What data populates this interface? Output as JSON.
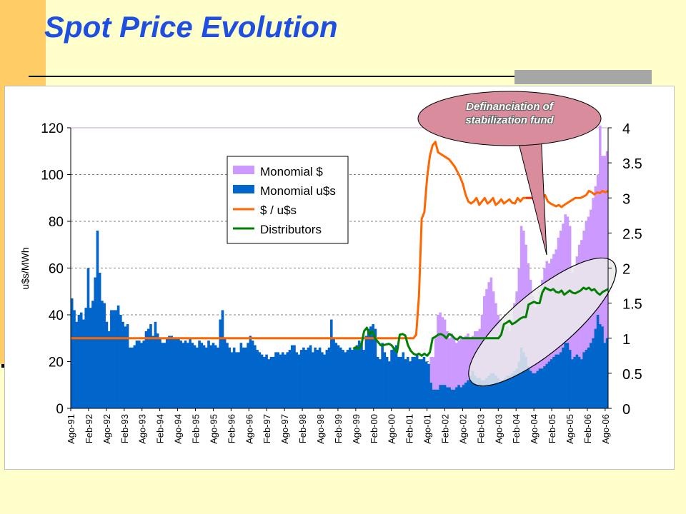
{
  "slide": {
    "title": "Spot Price Evolution",
    "callout": "Definanciation of stabilization fund"
  },
  "colors": {
    "monomial_pesos": "#CC99FF",
    "monomial_usd": "#0066CC",
    "exchange_rate": "#FF6600",
    "distributors": "#008000",
    "title": "#1F4FE0",
    "callout_fill": "#D98C9C"
  },
  "chart_data": {
    "type": "bar",
    "title": "",
    "ylabel": "u$s/MWh",
    "xlabel": "",
    "ylim": [
      0,
      120
    ],
    "y2lim": [
      0,
      4
    ],
    "yticks": [
      0,
      20,
      40,
      60,
      80,
      100,
      120
    ],
    "y2ticks": [
      "0",
      "0.5",
      "1",
      "1.5",
      "2",
      "2.5",
      "3",
      "3.5",
      "4"
    ],
    "grid": true,
    "legend_position": "top-center",
    "x_start": "Ago-91",
    "x_end": "Ago-06",
    "x_tick_labels": [
      "Ago-91",
      "Feb-92",
      "Ago-92",
      "Feb-93",
      "Ago-93",
      "Feb-94",
      "Ago-94",
      "Feb-95",
      "Ago-95",
      "Feb-96",
      "Ago-96",
      "Feb-97",
      "Ago-97",
      "Feb-98",
      "Ago-98",
      "Feb-99",
      "Ago-99",
      "Feb-00",
      "Ago-00",
      "Feb-01",
      "Ago-01",
      "Feb-02",
      "Ago-02",
      "Feb-03",
      "Ago-03",
      "Feb-04",
      "Ago-04",
      "Feb-05",
      "Ago-05",
      "Feb-06",
      "Ago-06"
    ],
    "series": [
      {
        "name": "Monomial $",
        "kind": "bar",
        "axis": "left",
        "values": [
          47,
          42,
          37,
          40,
          41,
          38,
          43,
          60,
          43,
          46,
          56,
          76,
          58,
          46,
          45,
          37,
          33,
          42,
          42,
          42,
          44,
          40,
          37,
          35,
          36,
          26,
          26,
          27,
          29,
          29,
          28,
          29,
          33,
          34,
          36,
          31,
          37,
          32,
          30,
          28,
          28,
          30,
          31,
          31,
          30,
          30,
          30,
          29,
          28,
          29,
          28,
          30,
          28,
          27,
          26,
          29,
          28,
          27,
          26,
          29,
          27,
          28,
          27,
          26,
          38,
          42,
          30,
          28,
          26,
          24,
          26,
          24,
          24,
          28,
          26,
          26,
          28,
          31,
          29,
          27,
          25,
          24,
          23,
          22,
          23,
          21,
          22,
          22,
          24,
          24,
          23,
          24,
          23,
          24,
          25,
          27,
          27,
          24,
          23,
          25,
          26,
          25,
          26,
          27,
          24,
          26,
          25,
          26,
          24,
          23,
          25,
          26,
          38,
          30,
          28,
          27,
          26,
          25,
          24,
          25,
          26,
          25,
          26,
          27,
          29,
          28,
          25,
          31,
          34,
          35,
          36,
          34,
          22,
          21,
          28,
          24,
          22,
          20,
          25,
          26,
          27,
          22,
          22,
          24,
          21,
          22,
          20,
          22,
          22,
          23,
          21,
          21,
          22,
          20,
          19,
          22,
          22,
          30,
          40,
          41,
          39,
          38,
          33,
          30,
          32,
          30,
          28,
          29,
          31,
          30,
          31,
          32,
          30,
          31,
          33,
          33,
          34,
          40,
          48,
          51,
          54,
          56,
          50,
          45,
          40,
          38,
          36,
          34,
          35,
          33,
          38,
          45,
          50,
          60,
          78,
          76,
          70,
          62,
          55,
          48,
          43,
          45,
          50,
          55,
          60,
          63,
          62,
          64,
          66,
          68,
          73,
          76,
          79,
          83,
          82,
          78,
          58,
          60,
          65,
          70,
          72,
          76,
          80,
          82,
          85,
          90,
          95,
          100,
          121,
          108,
          108,
          110
        ]
      },
      {
        "name": "Monomial u$s",
        "kind": "bar",
        "axis": "left",
        "values": [
          47,
          42,
          37,
          40,
          41,
          38,
          43,
          60,
          43,
          46,
          56,
          76,
          58,
          46,
          45,
          37,
          33,
          42,
          42,
          42,
          44,
          40,
          37,
          35,
          36,
          26,
          26,
          27,
          29,
          29,
          28,
          29,
          33,
          34,
          36,
          31,
          37,
          32,
          30,
          28,
          28,
          30,
          31,
          31,
          30,
          30,
          30,
          29,
          28,
          29,
          28,
          30,
          28,
          27,
          26,
          29,
          28,
          27,
          26,
          29,
          27,
          28,
          27,
          26,
          38,
          42,
          30,
          28,
          26,
          24,
          26,
          24,
          24,
          28,
          26,
          26,
          28,
          31,
          29,
          27,
          25,
          24,
          23,
          22,
          23,
          21,
          22,
          22,
          24,
          24,
          23,
          24,
          23,
          24,
          25,
          27,
          27,
          24,
          23,
          25,
          26,
          25,
          26,
          27,
          24,
          26,
          25,
          26,
          24,
          23,
          25,
          26,
          38,
          30,
          28,
          27,
          26,
          25,
          24,
          25,
          26,
          25,
          26,
          27,
          29,
          28,
          25,
          31,
          34,
          35,
          36,
          34,
          22,
          21,
          28,
          24,
          22,
          20,
          25,
          26,
          27,
          22,
          22,
          24,
          21,
          22,
          20,
          22,
          22,
          23,
          21,
          21,
          22,
          20,
          19,
          11,
          8,
          8,
          8,
          10,
          10,
          10,
          9,
          9,
          8,
          8,
          9,
          10,
          9,
          10,
          11,
          12,
          14,
          16,
          14,
          13,
          13,
          12,
          12,
          13,
          14,
          15,
          15,
          14,
          13,
          12,
          12,
          13,
          14,
          14,
          15,
          16,
          17,
          20,
          26,
          24,
          22,
          18,
          16,
          15,
          15,
          16,
          17,
          17,
          18,
          19,
          20,
          21,
          22,
          23,
          23,
          24,
          26,
          28,
          28,
          25,
          21,
          22,
          23,
          22,
          21,
          24,
          25,
          26,
          28,
          30,
          34,
          40,
          36,
          35,
          28,
          30
        ]
      },
      {
        "name": "$ / u$s",
        "kind": "line",
        "axis": "right",
        "points": [
          [
            0,
            1
          ],
          [
            125,
            1
          ],
          [
            126,
            1.05
          ],
          [
            127,
            1.6
          ],
          [
            128,
            2.7
          ],
          [
            129,
            2.8
          ],
          [
            130,
            3.3
          ],
          [
            131,
            3.6
          ],
          [
            132,
            3.75
          ],
          [
            133,
            3.8
          ],
          [
            134,
            3.65
          ],
          [
            136,
            3.6
          ],
          [
            138,
            3.55
          ],
          [
            140,
            3.45
          ],
          [
            142,
            3.3
          ],
          [
            143,
            3.2
          ],
          [
            144,
            3.05
          ],
          [
            145,
            2.95
          ],
          [
            146,
            2.92
          ],
          [
            147,
            2.95
          ],
          [
            148,
            3
          ],
          [
            149,
            2.9
          ],
          [
            150,
            2.95
          ],
          [
            151,
            3.0
          ],
          [
            152,
            2.92
          ],
          [
            153,
            2.95
          ],
          [
            154,
            3.0
          ],
          [
            155,
            2.9
          ],
          [
            156,
            2.93
          ],
          [
            157,
            2.98
          ],
          [
            158,
            2.92
          ],
          [
            159,
            2.95
          ],
          [
            160,
            2.98
          ],
          [
            161,
            2.93
          ],
          [
            162,
            2.92
          ],
          [
            163,
            3.0
          ],
          [
            164,
            2.95
          ],
          [
            165,
            3.0
          ],
          [
            166,
            3.0
          ],
          [
            170,
            3.0
          ],
          [
            172,
            3.0
          ],
          [
            173,
            3.04
          ],
          [
            174,
            2.95
          ],
          [
            175,
            2.92
          ],
          [
            176,
            2.9
          ],
          [
            177,
            2.88
          ],
          [
            178,
            2.9
          ],
          [
            179,
            2.87
          ],
          [
            180,
            2.9
          ],
          [
            182,
            2.95
          ],
          [
            184,
            3.0
          ],
          [
            186,
            3.0
          ],
          [
            188,
            3.04
          ],
          [
            189,
            3.1
          ],
          [
            190,
            3.08
          ],
          [
            191,
            3.05
          ],
          [
            192,
            3.08
          ],
          [
            193,
            3.07
          ],
          [
            194,
            3.1
          ],
          [
            195,
            3.08
          ],
          [
            196,
            3.1
          ]
        ]
      },
      {
        "name": "Distributors",
        "kind": "line",
        "axis": "right",
        "points": [
          [
            103,
            0.85
          ],
          [
            104,
            0.87
          ],
          [
            105,
            0.85
          ],
          [
            106,
            0.9
          ],
          [
            107,
            1.1
          ],
          [
            108,
            1.15
          ],
          [
            109,
            1.05
          ],
          [
            110,
            1.1
          ],
          [
            111,
            1.0
          ],
          [
            112,
            0.95
          ],
          [
            113,
            0.9
          ],
          [
            114,
            0.9
          ],
          [
            116,
            0.92
          ],
          [
            117,
            0.9
          ],
          [
            118,
            0.85
          ],
          [
            119,
            0.8
          ],
          [
            120,
            1.05
          ],
          [
            121,
            1.06
          ],
          [
            122,
            1.04
          ],
          [
            123,
            0.9
          ],
          [
            124,
            0.82
          ],
          [
            125,
            0.78
          ],
          [
            126,
            0.76
          ],
          [
            127,
            0.78
          ],
          [
            128,
            0.75
          ],
          [
            129,
            0.78
          ],
          [
            130,
            0.75
          ],
          [
            131,
            0.8
          ],
          [
            132,
            1.0
          ],
          [
            133,
            1.02
          ],
          [
            134,
            1.05
          ],
          [
            135,
            1.06
          ],
          [
            136,
            1.04
          ],
          [
            137,
            1.0
          ],
          [
            138,
            1.06
          ],
          [
            139,
            1.04
          ],
          [
            140,
            1.0
          ],
          [
            141,
            0.98
          ],
          [
            142,
            1.02
          ],
          [
            143,
            1.0
          ],
          [
            144,
            1.0
          ],
          [
            146,
            1.0
          ],
          [
            148,
            1.0
          ],
          [
            150,
            1.0
          ],
          [
            152,
            1.0
          ],
          [
            154,
            1.0
          ],
          [
            156,
            1.0
          ],
          [
            157,
            1.05
          ],
          [
            158,
            1.2
          ],
          [
            159,
            1.22
          ],
          [
            160,
            1.25
          ],
          [
            161,
            1.2
          ],
          [
            162,
            1.22
          ],
          [
            163,
            1.25
          ],
          [
            164,
            1.28
          ],
          [
            165,
            1.3
          ],
          [
            166,
            1.3
          ],
          [
            167,
            1.48
          ],
          [
            168,
            1.5
          ],
          [
            169,
            1.52
          ],
          [
            170,
            1.5
          ],
          [
            171,
            1.5
          ],
          [
            172,
            1.65
          ],
          [
            173,
            1.72
          ],
          [
            174,
            1.7
          ],
          [
            175,
            1.68
          ],
          [
            176,
            1.7
          ],
          [
            177,
            1.66
          ],
          [
            178,
            1.65
          ],
          [
            179,
            1.68
          ],
          [
            180,
            1.62
          ],
          [
            181,
            1.65
          ],
          [
            182,
            1.68
          ],
          [
            183,
            1.65
          ],
          [
            184,
            1.64
          ],
          [
            185,
            1.66
          ],
          [
            186,
            1.68
          ],
          [
            187,
            1.72
          ],
          [
            188,
            1.7
          ],
          [
            189,
            1.72
          ],
          [
            190,
            1.68
          ],
          [
            191,
            1.7
          ],
          [
            192,
            1.65
          ],
          [
            193,
            1.62
          ],
          [
            194,
            1.66
          ],
          [
            195,
            1.68
          ],
          [
            196,
            1.7
          ]
        ]
      }
    ]
  }
}
